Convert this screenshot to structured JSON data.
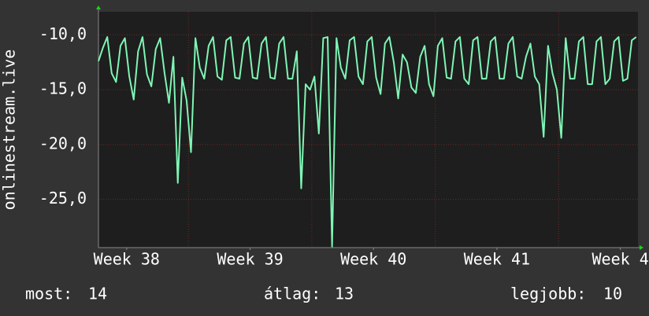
{
  "chart_data": {
    "type": "line",
    "ylabel": "onlinestream.live",
    "xlim": [
      0,
      30.6
    ],
    "ylim": [
      -29.4,
      -7.9
    ],
    "yticks": [
      {
        "value": -10,
        "label": "-10,0"
      },
      {
        "value": -15,
        "label": "-15,0"
      },
      {
        "value": -20,
        "label": "-20,0"
      },
      {
        "value": -25,
        "label": "-25,0"
      }
    ],
    "xticks": [
      {
        "value": 1.6,
        "label": "Week 38"
      },
      {
        "value": 8.6,
        "label": "Week 39"
      },
      {
        "value": 15.6,
        "label": "Week 40"
      },
      {
        "value": 22.6,
        "label": "Week 41"
      },
      {
        "value": 29.6,
        "label": "Week 4"
      }
    ],
    "xgrid": [
      5.1,
      12.1,
      19.1,
      26.1
    ],
    "grid": true,
    "series": [
      {
        "color": "#7ff5b5",
        "x": [
          0,
          0.25,
          0.5,
          0.75,
          1,
          1.25,
          1.5,
          1.75,
          2,
          2.25,
          2.5,
          2.75,
          3,
          3.25,
          3.5,
          3.75,
          4,
          4.25,
          4.5,
          4.75,
          5,
          5.25,
          5.5,
          5.75,
          6,
          6.25,
          6.5,
          6.75,
          7,
          7.25,
          7.5,
          7.75,
          8,
          8.25,
          8.5,
          8.75,
          9,
          9.25,
          9.5,
          9.75,
          10,
          10.25,
          10.5,
          10.75,
          11,
          11.25,
          11.5,
          11.75,
          12,
          12.25,
          12.5,
          12.75,
          13,
          13.25,
          13.5,
          13.75,
          14,
          14.25,
          14.5,
          14.75,
          15,
          15.25,
          15.5,
          15.75,
          16,
          16.25,
          16.5,
          16.75,
          17,
          17.25,
          17.5,
          17.75,
          18,
          18.25,
          18.5,
          18.75,
          19,
          19.25,
          19.5,
          19.75,
          20,
          20.25,
          20.5,
          20.75,
          21,
          21.25,
          21.5,
          21.75,
          22,
          22.25,
          22.5,
          22.75,
          23,
          23.25,
          23.5,
          23.75,
          24,
          24.25,
          24.5,
          24.75,
          25,
          25.25,
          25.5,
          25.75,
          26,
          26.25,
          26.5,
          26.75,
          27,
          27.25,
          27.5,
          27.75,
          28,
          28.25,
          28.5,
          28.75,
          29,
          29.25,
          29.5,
          29.75,
          30,
          30.25,
          30.5
        ],
        "values": [
          -12.4,
          -11.2,
          -10.2,
          -13.5,
          -14.3,
          -11.0,
          -10.3,
          -13.8,
          -15.9,
          -11.5,
          -10.2,
          -13.6,
          -14.7,
          -11.3,
          -10.3,
          -13.5,
          -16.2,
          -12.0,
          -23.5,
          -13.9,
          -16.0,
          -20.7,
          -10.3,
          -13.0,
          -14.0,
          -11.0,
          -10.2,
          -13.8,
          -14.1,
          -10.5,
          -10.2,
          -13.9,
          -14.0,
          -10.8,
          -10.2,
          -13.9,
          -14.0,
          -10.8,
          -10.2,
          -13.9,
          -14.0,
          -10.8,
          -10.2,
          -14.0,
          -14.0,
          -11.5,
          -24.0,
          -14.5,
          -15.0,
          -13.8,
          -19.0,
          -10.3,
          -10.2,
          -29.3,
          -10.3,
          -13.0,
          -14.0,
          -10.5,
          -10.2,
          -13.8,
          -14.5,
          -10.6,
          -10.2,
          -13.9,
          -15.4,
          -10.8,
          -10.2,
          -12.5,
          -15.8,
          -11.8,
          -12.5,
          -14.8,
          -15.3,
          -12.0,
          -11.0,
          -14.5,
          -15.6,
          -11.0,
          -10.3,
          -13.9,
          -14.0,
          -10.6,
          -10.2,
          -14.0,
          -14.5,
          -10.5,
          -10.2,
          -14.0,
          -14.0,
          -10.6,
          -10.2,
          -14.0,
          -14.0,
          -10.8,
          -10.2,
          -13.8,
          -14.0,
          -12.0,
          -10.8,
          -13.8,
          -14.5,
          -19.3,
          -11.0,
          -13.5,
          -15.0,
          -19.4,
          -10.3,
          -14.0,
          -14.0,
          -10.6,
          -10.2,
          -14.5,
          -14.5,
          -10.6,
          -10.2,
          -14.5,
          -14.0,
          -10.6,
          -10.2,
          -14.2,
          -14.0,
          -10.5,
          -10.2
        ]
      }
    ],
    "stats": [
      {
        "label": "most:",
        "value": 14
      },
      {
        "label": "átlag:",
        "value": 13
      },
      {
        "label": "legjobb:",
        "value": 10
      }
    ]
  }
}
